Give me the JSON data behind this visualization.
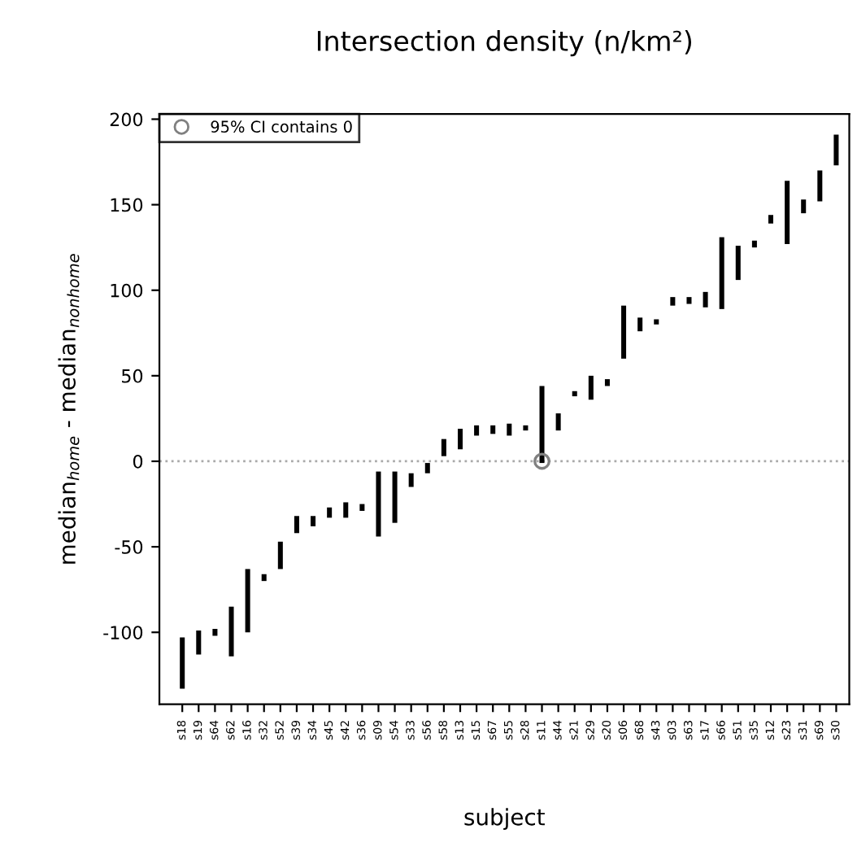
{
  "chart_data": {
    "type": "bar",
    "title": "Intersection density (n/km²)",
    "xlabel": "subject",
    "ylabel": "median$_{home}$ - median$_{nonhome}$",
    "categories": [
      "s18",
      "s19",
      "s64",
      "s62",
      "s16",
      "s32",
      "s52",
      "s39",
      "s34",
      "s45",
      "s42",
      "s36",
      "s09",
      "s54",
      "s33",
      "s56",
      "s58",
      "s13",
      "s15",
      "s67",
      "s55",
      "s28",
      "s11",
      "s44",
      "s21",
      "s29",
      "s20",
      "s06",
      "s68",
      "s43",
      "s03",
      "s63",
      "s17",
      "s66",
      "s51",
      "s35",
      "s12",
      "s23",
      "s31",
      "s69",
      "s30"
    ],
    "series": [
      {
        "color": "#000000",
        "base": [
          -133,
          -113,
          -102,
          -114,
          -100,
          -70,
          -63,
          -42,
          -38,
          -33,
          -33,
          -29,
          -44,
          -36,
          -15,
          -7,
          3,
          7,
          15,
          16,
          15,
          18,
          -1,
          18,
          38,
          36,
          44,
          60,
          76,
          80,
          91,
          92,
          90,
          89,
          106,
          125,
          139,
          127,
          145,
          152,
          173
        ],
        "values": [
          30,
          14,
          4,
          29,
          37,
          4,
          16,
          10,
          6,
          6,
          9,
          4,
          38,
          30,
          8,
          6,
          10,
          12,
          6,
          5,
          7,
          3,
          45,
          10,
          3,
          14,
          4,
          31,
          8,
          3,
          5,
          4,
          9,
          42,
          20,
          4,
          5,
          37,
          8,
          18,
          18
        ]
      },
      {
        "type": "scatter",
        "name": "95% CI contains 0",
        "color": "#808080",
        "marker": "circle",
        "values": [
          null,
          null,
          null,
          null,
          null,
          null,
          null,
          null,
          null,
          null,
          null,
          null,
          null,
          null,
          null,
          null,
          null,
          null,
          null,
          null,
          null,
          null,
          0,
          null,
          null,
          null,
          null,
          null,
          null,
          null,
          null,
          null,
          null,
          null,
          null,
          null,
          null,
          null,
          null,
          null,
          null
        ]
      }
    ],
    "ylim": [
      -142,
      203
    ],
    "yticks": [
      -100,
      -50,
      0,
      50,
      100,
      150,
      200
    ],
    "ref_lines": [
      {
        "axis": "y",
        "value": 0,
        "color": "#aaaaaa",
        "line_style": "dotted"
      }
    ],
    "legend": "top left",
    "grid": false
  }
}
